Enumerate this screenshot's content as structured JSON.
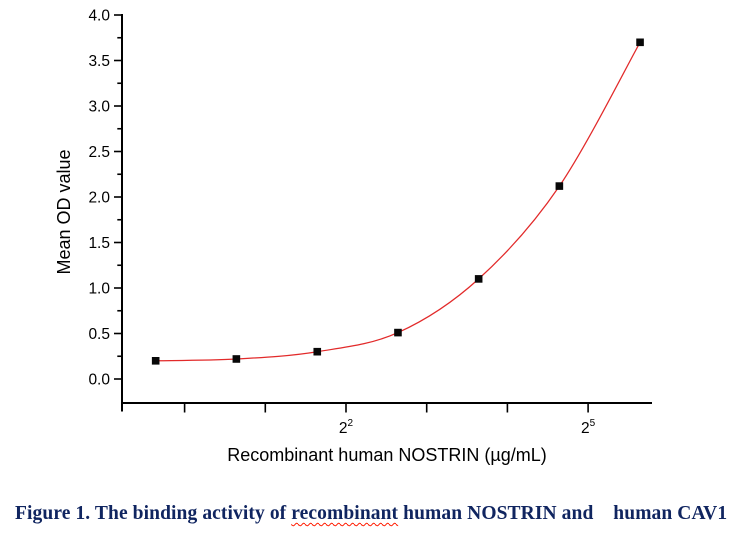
{
  "caption": {
    "prefix": "Figure 1. The binding activity of ",
    "spellchecked_word": "recombinant",
    "suffix": " human NOSTRIN and    human CAV1",
    "text_color": "#102560",
    "squiggle_color": "#ff1a00"
  },
  "chart_data": {
    "type": "scatter",
    "title": "",
    "xlabel": "Recombinant human NOSTRIN (µg/mL)",
    "ylabel": "Mean OD value",
    "x_scale": "log2",
    "x": [
      0.78,
      1.56,
      3.125,
      6.25,
      12.5,
      25,
      50
    ],
    "y": [
      0.2,
      0.22,
      0.3,
      0.51,
      1.1,
      2.12,
      3.7
    ],
    "marker": "filled-black-square",
    "curve_style": "smooth-fit-line",
    "curve_color": "#e22a2a",
    "marker_color": "#080808",
    "axis_color": "#000000",
    "x_axis": {
      "base": 2,
      "tick_exponents": [
        0,
        1,
        2,
        3,
        4,
        5
      ],
      "labeled_exponents": [
        2,
        5
      ],
      "xlim_log2": [
        -0.76,
        5.79
      ]
    },
    "y_axis": {
      "min": 0.0,
      "max": 4.0,
      "major_step": 0.5,
      "minor_step": 0.25,
      "label_decimals": 1,
      "axis_extends_below_to": -0.26
    },
    "grid": false,
    "legend": "none"
  }
}
